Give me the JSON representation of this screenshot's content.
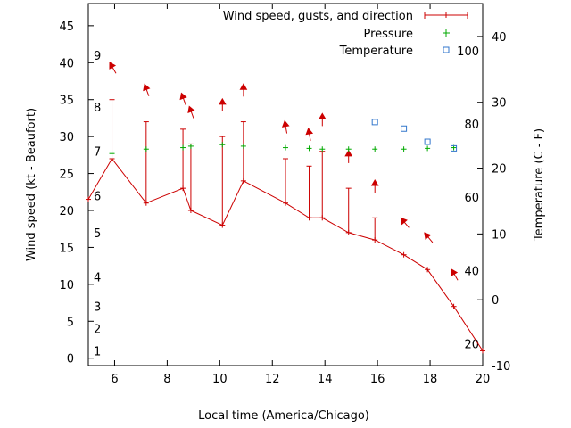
{
  "chart_data": {
    "type": "line",
    "xlabel": "Local time (America/Chicago)",
    "ylabel": "Wind speed (kt - Beaufort)",
    "y2label": "Temperature (C - F)",
    "xlim": [
      5,
      20
    ],
    "ylim": [
      -1,
      48
    ],
    "y2lim": [
      -10,
      45
    ],
    "x_ticks": [
      6,
      8,
      10,
      12,
      14,
      16,
      18,
      20
    ],
    "y_ticks": [
      0,
      5,
      10,
      15,
      20,
      25,
      30,
      35,
      40,
      45
    ],
    "y2_ticks": [
      -10,
      0,
      10,
      20,
      30,
      40
    ],
    "beaufort_labels": [
      {
        "label": "1",
        "y": 1
      },
      {
        "label": "2",
        "y": 4
      },
      {
        "label": "3",
        "y": 7
      },
      {
        "label": "4",
        "y": 11
      },
      {
        "label": "5",
        "y": 17
      },
      {
        "label": "6",
        "y": 22
      },
      {
        "label": "7",
        "y": 28
      },
      {
        "label": "8",
        "y": 34
      },
      {
        "label": "9",
        "y": 41
      }
    ],
    "fahrenheit_labels": [
      {
        "label": "20",
        "y2": -6.7
      },
      {
        "label": "40",
        "y2": 4.4
      },
      {
        "label": "60",
        "y2": 15.6
      },
      {
        "label": "80",
        "y2": 26.7
      },
      {
        "label": "100",
        "y2": 37.8
      }
    ],
    "legend": {
      "position": "top-right",
      "entries": [
        "Wind speed, gusts, and direction",
        "Pressure",
        "Temperature"
      ]
    },
    "series": [
      {
        "name": "Wind speed, gusts, and direction",
        "color": "#cc0000",
        "points": [
          {
            "x": 5.0,
            "y": 21.5
          },
          {
            "x": 5.9,
            "y": 27,
            "gust": 35,
            "arrow_y": 39.5,
            "dir_deg": 330
          },
          {
            "x": 7.2,
            "y": 21,
            "gust": 32,
            "arrow_y": 36.5,
            "dir_deg": 340
          },
          {
            "x": 8.6,
            "y": 23,
            "gust": 31,
            "arrow_y": 35.3,
            "dir_deg": 340
          },
          {
            "x": 8.9,
            "y": 20,
            "gust": 29,
            "arrow_y": 33.5,
            "dir_deg": 340
          },
          {
            "x": 10.1,
            "y": 18,
            "gust": 30,
            "arrow_y": 34.5,
            "dir_deg": 0
          },
          {
            "x": 10.9,
            "y": 24,
            "gust": 32,
            "arrow_y": 36.5,
            "dir_deg": 0
          },
          {
            "x": 12.5,
            "y": 21,
            "gust": 27,
            "arrow_y": 31.5,
            "dir_deg": 350
          },
          {
            "x": 13.4,
            "y": 19,
            "gust": 26,
            "arrow_y": 30.5,
            "dir_deg": 350
          },
          {
            "x": 13.9,
            "y": 19,
            "gust": 28,
            "arrow_y": 32.5,
            "dir_deg": 0
          },
          {
            "x": 14.9,
            "y": 17,
            "gust": 23,
            "arrow_y": 27.5,
            "dir_deg": 0
          },
          {
            "x": 15.9,
            "y": 16,
            "gust": 19,
            "arrow_y": 23.5,
            "dir_deg": 0
          },
          {
            "x": 17.0,
            "y": 14,
            "arrow_y": 18.5,
            "dir_deg": 320
          },
          {
            "x": 17.9,
            "y": 12,
            "arrow_y": 16.5,
            "dir_deg": 320
          },
          {
            "x": 18.9,
            "y": 7,
            "arrow_y": 11.5,
            "dir_deg": 330
          },
          {
            "x": 20.0,
            "y": 1
          }
        ]
      },
      {
        "name": "Pressure",
        "color": "#00aa00",
        "points": [
          {
            "x": 5.9,
            "y": 27.7
          },
          {
            "x": 7.2,
            "y": 28.3
          },
          {
            "x": 8.6,
            "y": 28.5
          },
          {
            "x": 8.9,
            "y": 28.7
          },
          {
            "x": 10.1,
            "y": 28.9
          },
          {
            "x": 10.9,
            "y": 28.7
          },
          {
            "x": 12.5,
            "y": 28.5
          },
          {
            "x": 13.4,
            "y": 28.4
          },
          {
            "x": 13.9,
            "y": 28.3
          },
          {
            "x": 14.9,
            "y": 28.3
          },
          {
            "x": 15.9,
            "y": 28.3
          },
          {
            "x": 17.0,
            "y": 28.3
          },
          {
            "x": 17.9,
            "y": 28.4
          },
          {
            "x": 18.9,
            "y": 28.5
          }
        ]
      },
      {
        "name": "Temperature",
        "color": "#3377cc",
        "points": [
          {
            "x": 15.9,
            "y2": 27
          },
          {
            "x": 17.0,
            "y2": 26
          },
          {
            "x": 17.9,
            "y2": 24
          },
          {
            "x": 18.9,
            "y2": 23
          }
        ]
      }
    ]
  }
}
